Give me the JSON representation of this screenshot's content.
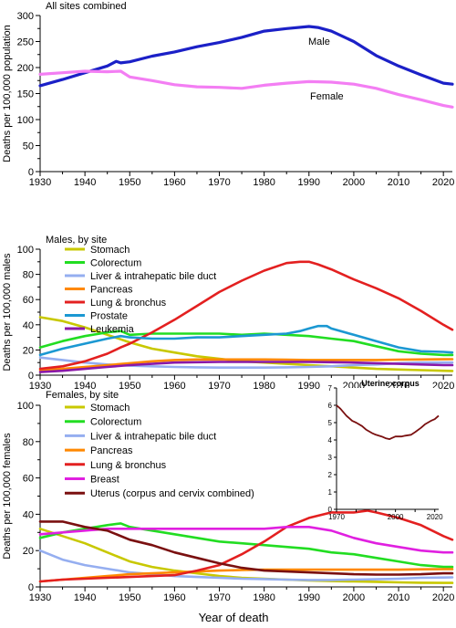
{
  "figure": {
    "xlabel": "Year of death"
  },
  "chart_data": [
    {
      "type": "line",
      "title": "All sites combined",
      "xlabel": "",
      "ylabel": "Deaths per 100,000 population",
      "xlim": [
        1930,
        2022
      ],
      "ylim": [
        0,
        300
      ],
      "xticks": [
        1930,
        1940,
        1950,
        1960,
        1970,
        1980,
        1990,
        2000,
        2010,
        2020
      ],
      "yticks": [
        0,
        50,
        100,
        150,
        200,
        250,
        300
      ],
      "grid": false,
      "legend": "none",
      "series": [
        {
          "name": "Male",
          "color": "#1b20c7",
          "x": [
            1930,
            1935,
            1940,
            1945,
            1947,
            1948,
            1950,
            1955,
            1960,
            1965,
            1970,
            1975,
            1980,
            1985,
            1990,
            1992,
            1995,
            2000,
            2005,
            2010,
            2015,
            2020,
            2022
          ],
          "y": [
            165,
            177,
            190,
            203,
            212,
            209,
            211,
            222,
            230,
            240,
            248,
            258,
            270,
            275,
            279,
            277,
            270,
            250,
            223,
            203,
            186,
            170,
            168
          ]
        },
        {
          "name": "Female",
          "color": "#f37ef3",
          "x": [
            1930,
            1935,
            1940,
            1945,
            1948,
            1950,
            1955,
            1960,
            1965,
            1970,
            1975,
            1980,
            1985,
            1990,
            1995,
            2000,
            2005,
            2010,
            2015,
            2020,
            2022
          ],
          "y": [
            187,
            190,
            193,
            192,
            193,
            182,
            175,
            167,
            163,
            162,
            160,
            166,
            170,
            173,
            172,
            168,
            160,
            148,
            138,
            127,
            124
          ]
        }
      ],
      "annotations": [
        "Male",
        "Female"
      ]
    },
    {
      "type": "line",
      "title": "Males, by site",
      "xlabel": "",
      "ylabel": "Deaths per 100,000 males",
      "xlim": [
        1930,
        2022
      ],
      "ylim": [
        0,
        100
      ],
      "xticks": [
        1930,
        1940,
        1950,
        1960,
        1970,
        1980,
        1990,
        2000,
        2010,
        2020
      ],
      "yticks": [
        0,
        20,
        40,
        60,
        80,
        100
      ],
      "grid": false,
      "legend": "top-left",
      "series": [
        {
          "name": "Stomach",
          "color": "#c8c800",
          "x": [
            1930,
            1935,
            1940,
            1945,
            1950,
            1955,
            1960,
            1965,
            1970,
            1975,
            1980,
            1985,
            1990,
            1995,
            2000,
            2005,
            2010,
            2015,
            2020,
            2022
          ],
          "y": [
            46,
            43,
            38,
            32,
            26,
            21,
            18,
            15,
            13,
            11,
            10,
            9,
            8,
            7,
            6,
            5,
            4.5,
            4,
            3.5,
            3.3
          ]
        },
        {
          "name": "Colorectum",
          "color": "#22dd22",
          "x": [
            1930,
            1935,
            1940,
            1945,
            1948,
            1950,
            1955,
            1960,
            1965,
            1970,
            1975,
            1980,
            1985,
            1990,
            1995,
            2000,
            2005,
            2010,
            2015,
            2020,
            2022
          ],
          "y": [
            22,
            27,
            31,
            34,
            35,
            32,
            33,
            33,
            33,
            33,
            32,
            33,
            32,
            31,
            29,
            27,
            23,
            19,
            17,
            16,
            16
          ]
        },
        {
          "name": "Liver & intrahepatic bile duct",
          "color": "#95aef0",
          "x": [
            1930,
            1935,
            1940,
            1945,
            1950,
            1955,
            1960,
            1965,
            1970,
            1975,
            1980,
            1985,
            1990,
            1995,
            2000,
            2005,
            2010,
            2015,
            2020,
            2022
          ],
          "y": [
            14,
            12,
            10,
            8.5,
            7.5,
            7,
            6.5,
            6.2,
            6,
            6,
            6,
            6.2,
            6.5,
            7,
            8,
            8.5,
            9.5,
            10,
            10,
            10
          ]
        },
        {
          "name": "Pancreas",
          "color": "#ff8800",
          "x": [
            1930,
            1935,
            1940,
            1945,
            1950,
            1955,
            1960,
            1965,
            1970,
            1975,
            1980,
            1985,
            1990,
            1995,
            2000,
            2005,
            2010,
            2015,
            2020,
            2022
          ],
          "y": [
            4,
            5,
            6.5,
            8,
            9.5,
            11,
            12,
            12.5,
            12.5,
            12.5,
            12.5,
            12.3,
            12,
            12,
            12,
            12,
            12.3,
            12.5,
            12.6,
            12.7
          ]
        },
        {
          "name": "Lung & bronchus",
          "color": "#e32020",
          "x": [
            1930,
            1935,
            1940,
            1945,
            1948,
            1950,
            1955,
            1960,
            1965,
            1970,
            1975,
            1980,
            1985,
            1988,
            1990,
            1992,
            1995,
            2000,
            2005,
            2010,
            2015,
            2020,
            2022
          ],
          "y": [
            5,
            7,
            11,
            17,
            22,
            25,
            34,
            44,
            55,
            66,
            75,
            83,
            89,
            90,
            90,
            88,
            84,
            76,
            69,
            61,
            51,
            40,
            36
          ]
        },
        {
          "name": "Prostate",
          "color": "#1b98d2",
          "x": [
            1930,
            1935,
            1940,
            1945,
            1948,
            1950,
            1955,
            1960,
            1965,
            1970,
            1975,
            1980,
            1985,
            1988,
            1990,
            1992,
            1994,
            1995,
            2000,
            2005,
            2010,
            2015,
            2020,
            2022
          ],
          "y": [
            16,
            21,
            25,
            29,
            31,
            30,
            29,
            29,
            30,
            30,
            31,
            32,
            33,
            35,
            37,
            39,
            39,
            37,
            32,
            27,
            22,
            19,
            18.5,
            18
          ]
        },
        {
          "name": "Leukemia",
          "color": "#8a18a8",
          "x": [
            1930,
            1935,
            1940,
            1945,
            1950,
            1955,
            1960,
            1965,
            1970,
            1975,
            1980,
            1985,
            1990,
            1995,
            2000,
            2005,
            2010,
            2015,
            2020,
            2022
          ],
          "y": [
            2.5,
            3.5,
            5,
            6.5,
            8,
            9,
            10,
            10.3,
            10.5,
            10.5,
            10.5,
            10.5,
            10.5,
            10.3,
            10,
            9.5,
            9,
            8.5,
            8,
            8
          ]
        }
      ]
    },
    {
      "type": "line",
      "title": "Females, by site",
      "xlabel": "",
      "ylabel": "Deaths per 100,000 females",
      "xlim": [
        1930,
        2022
      ],
      "ylim": [
        0,
        100
      ],
      "xticks": [
        1930,
        1940,
        1950,
        1960,
        1970,
        1980,
        1990,
        2000,
        2010,
        2020
      ],
      "yticks": [
        0,
        20,
        40,
        60,
        80,
        100
      ],
      "grid": false,
      "legend": "top-left",
      "series": [
        {
          "name": "Stomach",
          "color": "#c8c800",
          "x": [
            1930,
            1935,
            1940,
            1945,
            1950,
            1955,
            1960,
            1965,
            1970,
            1975,
            1980,
            1985,
            1990,
            1995,
            2000,
            2005,
            2010,
            2015,
            2020,
            2022
          ],
          "y": [
            32,
            28,
            24,
            19,
            14,
            11,
            9,
            7.5,
            6,
            5,
            4.5,
            4,
            3.5,
            3.2,
            3,
            2.8,
            2.5,
            2.3,
            2.2,
            2.2
          ]
        },
        {
          "name": "Colorectum",
          "color": "#22dd22",
          "x": [
            1930,
            1935,
            1940,
            1945,
            1948,
            1950,
            1955,
            1960,
            1965,
            1970,
            1975,
            1980,
            1985,
            1990,
            1995,
            2000,
            2005,
            2010,
            2015,
            2020,
            2022
          ],
          "y": [
            27,
            30,
            32,
            34,
            35,
            33,
            31,
            29,
            27,
            25,
            24,
            23,
            22,
            21,
            19,
            18,
            16,
            14,
            12,
            11,
            11
          ]
        },
        {
          "name": "Liver & intrahepatic bile duct",
          "color": "#95aef0",
          "x": [
            1930,
            1935,
            1940,
            1945,
            1950,
            1955,
            1960,
            1965,
            1970,
            1975,
            1980,
            1985,
            1990,
            1995,
            2000,
            2005,
            2010,
            2015,
            2020,
            2022
          ],
          "y": [
            20,
            15,
            12,
            10,
            8,
            7,
            6,
            5.5,
            5,
            4.5,
            4.3,
            4,
            3.8,
            3.8,
            4,
            4.2,
            4.5,
            5,
            5.2,
            5.3
          ]
        },
        {
          "name": "Pancreas",
          "color": "#ff8800",
          "x": [
            1930,
            1935,
            1940,
            1945,
            1950,
            1955,
            1960,
            1965,
            1970,
            1975,
            1980,
            1985,
            1990,
            1995,
            2000,
            2005,
            2010,
            2015,
            2020,
            2022
          ],
          "y": [
            3,
            4,
            5,
            6,
            7,
            7.5,
            8,
            8.5,
            9,
            9.3,
            9.5,
            9.5,
            9.5,
            9.5,
            9.5,
            9.5,
            9.5,
            9.7,
            9.8,
            9.8
          ]
        },
        {
          "name": "Lung & bronchus",
          "color": "#e32020",
          "x": [
            1930,
            1935,
            1940,
            1945,
            1950,
            1955,
            1960,
            1965,
            1970,
            1975,
            1980,
            1985,
            1990,
            1995,
            2000,
            2003,
            2005,
            2010,
            2015,
            2020,
            2022
          ],
          "y": [
            3,
            4,
            4.5,
            5,
            5.5,
            6,
            6.5,
            9,
            12,
            18,
            25,
            33,
            38,
            41,
            41,
            42,
            41,
            38,
            34,
            28,
            26
          ]
        },
        {
          "name": "Breast",
          "color": "#e020e0",
          "x": [
            1930,
            1935,
            1940,
            1945,
            1950,
            1955,
            1960,
            1965,
            1970,
            1975,
            1980,
            1985,
            1990,
            1995,
            2000,
            2005,
            2010,
            2015,
            2020,
            2022
          ],
          "y": [
            29,
            30,
            31,
            32,
            32,
            32,
            32,
            32,
            32,
            32,
            32,
            33,
            33,
            31,
            27,
            24,
            22,
            20,
            19,
            19
          ]
        },
        {
          "name": "Uterus (corpus and cervix combined)",
          "color": "#7a1010",
          "x": [
            1930,
            1935,
            1940,
            1945,
            1950,
            1955,
            1960,
            1965,
            1970,
            1975,
            1980,
            1985,
            1990,
            1995,
            2000,
            2005,
            2010,
            2015,
            2020,
            2022
          ],
          "y": [
            36,
            36,
            33,
            31,
            26,
            23,
            19,
            16,
            13,
            10.5,
            9,
            8.5,
            8,
            7.5,
            7,
            6.8,
            6.8,
            7,
            7.5,
            7.5
          ]
        }
      ],
      "inset": {
        "type": "line",
        "title": "Uterine corpus",
        "xlim": [
          1970,
          2022
        ],
        "ylim": [
          0,
          7
        ],
        "xticks": [
          1970,
          2000,
          2020
        ],
        "yticks": [
          0,
          1,
          2,
          3,
          4,
          5,
          6,
          7
        ],
        "series": [
          {
            "name": "",
            "color": "#7a1010",
            "x": [
              1970,
              1972,
              1975,
              1978,
              1980,
              1983,
              1985,
              1988,
              1990,
              1993,
              1995,
              1997,
              1998,
              2000,
              2003,
              2005,
              2008,
              2010,
              2013,
              2015,
              2018,
              2020,
              2022
            ],
            "y": [
              6,
              5.8,
              5.4,
              5.1,
              5,
              4.8,
              4.6,
              4.4,
              4.3,
              4.2,
              4.1,
              4.05,
              4.1,
              4.2,
              4.2,
              4.25,
              4.3,
              4.45,
              4.7,
              4.9,
              5.1,
              5.2,
              5.4
            ]
          }
        ]
      }
    }
  ]
}
